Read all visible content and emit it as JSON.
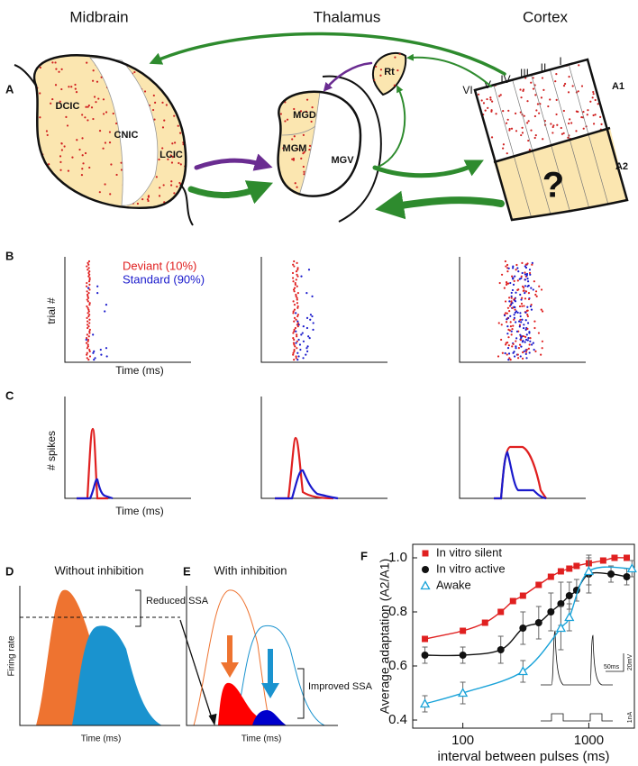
{
  "panel_a": {
    "label": "A",
    "titles": [
      "Midbrain",
      "Thalamus",
      "Cortex"
    ],
    "midbrain": [
      "DCIC",
      "CNIC",
      "LCIC"
    ],
    "thalamus": [
      "MGD",
      "MGM",
      "MGV",
      "Rt"
    ],
    "layers": [
      "VI",
      "V",
      "IV",
      "III",
      "II",
      "I"
    ],
    "areas": [
      "A1",
      "A2"
    ],
    "unknown": "?"
  },
  "panel_b": {
    "label": "B",
    "legend": [
      "Deviant (10%)",
      "Standard (90%)"
    ],
    "ylabel": "trial #",
    "xlabel": "Time (ms)"
  },
  "panel_c": {
    "label": "C",
    "ylabel": "# spikes",
    "xlabel": "Time (ms)"
  },
  "panel_d": {
    "label": "D",
    "title": "Without inhibition",
    "note": "Reduced SSA",
    "ylabel": "Firing rate",
    "xlabel": "Time (ms)"
  },
  "panel_e": {
    "label": "E",
    "title": "With inhibition",
    "note": "Improved SSA",
    "xlabel": "Time (ms)"
  },
  "panel_f": {
    "label": "F",
    "inset": [
      "50ms",
      "20mV",
      "1nA"
    ]
  },
  "chart_data": {
    "type": "scatter",
    "xlabel": "interval between pulses (ms)",
    "ylabel": "Average adaptation (A2/A1)",
    "xlim": [
      40,
      2300
    ],
    "xscale": "log",
    "xticks": [
      100,
      1000
    ],
    "ylim": [
      0.37,
      1.05
    ],
    "yticks": [
      0.4,
      0.6,
      0.8,
      {
        "value": 1,
        "label": "1.0"
      }
    ],
    "legend": "upper left",
    "series": [
      {
        "name": "In vitro silent",
        "color": "#e02020",
        "marker": "square",
        "x": [
          50,
          100,
          150,
          200,
          250,
          300,
          400,
          500,
          600,
          700,
          800,
          1000,
          1300,
          1600,
          2000
        ],
        "values": [
          0.7,
          0.73,
          0.76,
          0.8,
          0.84,
          0.86,
          0.9,
          0.93,
          0.95,
          0.96,
          0.97,
          0.98,
          0.99,
          1.0,
          1.0
        ]
      },
      {
        "name": "In vitro active",
        "color": "#111111",
        "marker": "circle",
        "x": [
          50,
          100,
          200,
          300,
          400,
          500,
          600,
          700,
          800,
          1000,
          1500,
          2000
        ],
        "values": [
          0.64,
          0.64,
          0.66,
          0.74,
          0.76,
          0.8,
          0.83,
          0.86,
          0.88,
          0.94,
          0.94,
          0.93
        ],
        "errors": [
          0.03,
          0.03,
          0.05,
          0.06,
          0.06,
          0.07,
          0.08,
          0.05,
          0.04,
          0.07,
          0.03,
          0.03
        ]
      },
      {
        "name": "Awake",
        "color": "#1aa3d9",
        "marker": "triangle",
        "x": [
          50,
          100,
          300,
          600,
          700,
          1000,
          2200
        ],
        "values": [
          0.46,
          0.5,
          0.58,
          0.74,
          0.78,
          0.95,
          0.96
        ],
        "errors": [
          0.03,
          0.04,
          0.04,
          0.08,
          0.05,
          0.05,
          0.03
        ]
      }
    ]
  }
}
